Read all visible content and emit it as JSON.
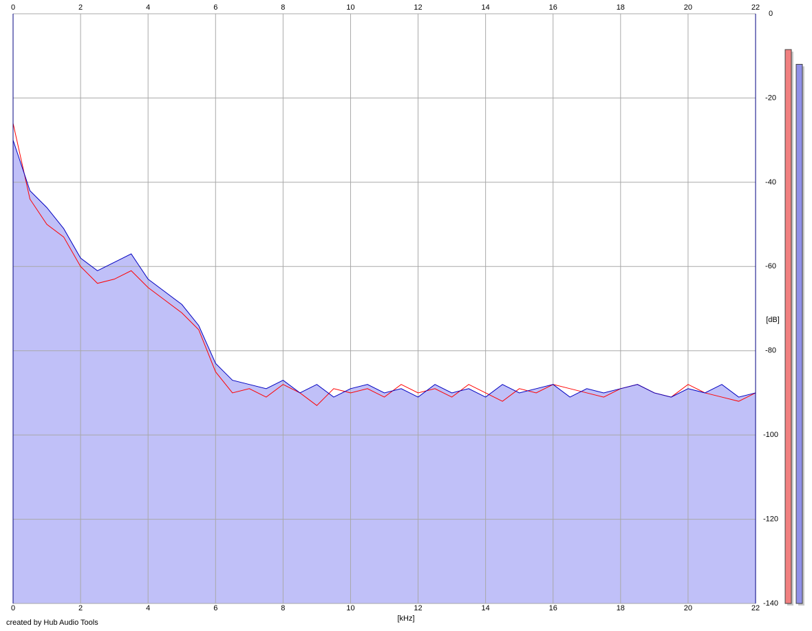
{
  "chart_data": {
    "type": "line",
    "x_label": "[kHz]",
    "y_label": "[dB]",
    "credit": "created by Hub Audio Tools",
    "x": [
      0,
      0.5,
      1,
      1.5,
      2,
      2.5,
      3,
      3.5,
      4,
      4.5,
      5,
      5.5,
      6,
      6.5,
      7,
      7.5,
      8,
      8.5,
      9,
      9.5,
      10,
      10.5,
      11,
      11.5,
      12,
      12.5,
      13,
      13.5,
      14,
      14.5,
      15,
      15.5,
      16,
      16.5,
      17,
      17.5,
      18,
      18.5,
      19,
      19.5,
      20,
      20.5,
      21,
      21.5,
      22
    ],
    "series": [
      {
        "color": "#ff0000",
        "values": [
          -26,
          -44,
          -50,
          -53,
          -60,
          -64,
          -63,
          -61,
          -65,
          -68,
          -71,
          -75,
          -85,
          -90,
          -89,
          -91,
          -88,
          -90,
          -93,
          -89,
          -90,
          -89,
          -91,
          -88,
          -90,
          -89,
          -91,
          -88,
          -90,
          -92,
          -89,
          -90,
          -88,
          -89,
          -90,
          -91,
          -89,
          -88,
          -90,
          -91,
          -88,
          -90,
          -91,
          -92,
          -90
        ]
      },
      {
        "color": "#0000c0",
        "fill": "#c0c0f8",
        "values": [
          -30,
          -42,
          -46,
          -51,
          -58,
          -61,
          -59,
          -57,
          -63,
          -66,
          -69,
          -74,
          -83,
          -87,
          -88,
          -89,
          -87,
          -90,
          -88,
          -91,
          -89,
          -88,
          -90,
          -89,
          -91,
          -88,
          -90,
          -89,
          -91,
          -88,
          -90,
          -89,
          -88,
          -91,
          -89,
          -90,
          -89,
          -88,
          -90,
          -91,
          -89,
          -90,
          -88,
          -91,
          -90
        ]
      }
    ],
    "xlim": [
      0,
      22
    ],
    "xticks": [
      0,
      2,
      4,
      6,
      8,
      10,
      12,
      14,
      16,
      18,
      20,
      22
    ],
    "ylim": [
      -140,
      0
    ],
    "yticks": [
      0,
      -20,
      -40,
      -60,
      -80,
      -100,
      -120,
      -140
    ],
    "grid": true,
    "meters": [
      {
        "color": "#f08080",
        "value": -8.5
      },
      {
        "color": "#9090e8",
        "value": -12
      }
    ]
  }
}
